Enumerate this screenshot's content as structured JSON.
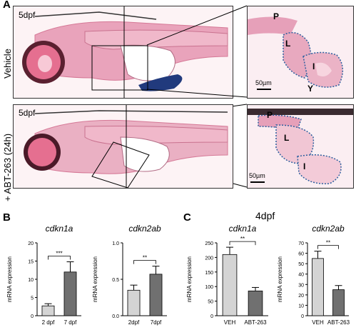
{
  "panel_a": {
    "letter": "A",
    "rows": [
      {
        "label": "Vehicle",
        "stage": "5dpf",
        "inset_labels": [
          "P",
          "L",
          "I",
          "Y"
        ],
        "scalebar": "50µm"
      },
      {
        "label": "+ ABT-263 (24h)",
        "stage": "5dpf",
        "inset_labels": [
          "P",
          "L",
          "I"
        ],
        "scalebar": "50µm"
      }
    ]
  },
  "panel_b": {
    "letter": "B"
  },
  "panel_c": {
    "letter": "C",
    "header": "4dpf"
  },
  "chart_data": [
    {
      "type": "bar",
      "title": "cdkn1a",
      "ylabel": "mRNA expression",
      "categories": [
        "2 dpf",
        "7 dpf"
      ],
      "values": [
        2.7,
        12.0
      ],
      "errors": [
        0.6,
        2.8
      ],
      "ylim": [
        0,
        20
      ],
      "yticks": [
        0,
        5,
        10,
        15,
        20
      ],
      "colors": [
        "#d4d4d4",
        "#707070"
      ],
      "significance": "***"
    },
    {
      "type": "bar",
      "title": "cdkn2ab",
      "ylabel": "mRNA expression",
      "categories": [
        "2dpf",
        "7dpf"
      ],
      "values": [
        0.35,
        0.57
      ],
      "errors": [
        0.07,
        0.11
      ],
      "ylim": [
        0,
        1.0
      ],
      "yticks": [
        0.0,
        0.5,
        1.0
      ],
      "colors": [
        "#d4d4d4",
        "#707070"
      ],
      "significance": "**"
    },
    {
      "type": "bar",
      "title": "cdkn1a",
      "ylabel": "mRNA expression",
      "categories": [
        "VEH",
        "ABT-263"
      ],
      "values": [
        210,
        85
      ],
      "errors": [
        25,
        12
      ],
      "ylim": [
        0,
        250
      ],
      "yticks": [
        0,
        50,
        100,
        150,
        200,
        250
      ],
      "colors": [
        "#d4d4d4",
        "#707070"
      ],
      "significance": "**"
    },
    {
      "type": "bar",
      "title": "cdkn2ab",
      "ylabel": "mRNA expression",
      "categories": [
        "VEH",
        "ABT-263"
      ],
      "values": [
        55,
        25
      ],
      "errors": [
        7,
        4
      ],
      "ylim": [
        0,
        70
      ],
      "yticks": [
        0,
        10,
        20,
        30,
        40,
        50,
        60,
        70
      ],
      "colors": [
        "#d4d4d4",
        "#707070"
      ],
      "significance": "**"
    }
  ]
}
